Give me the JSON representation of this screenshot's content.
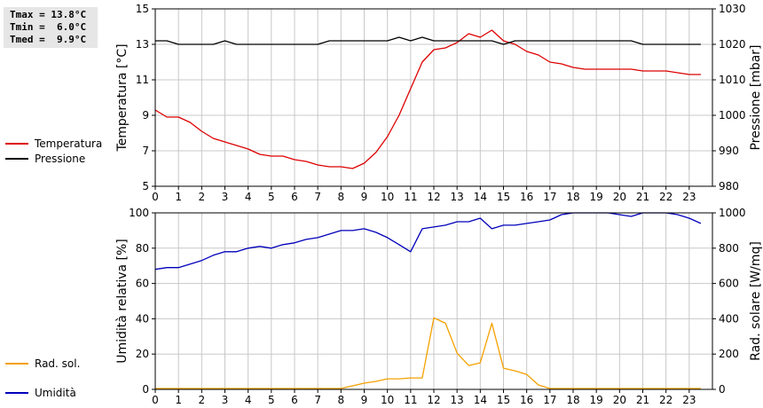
{
  "stats": {
    "tmax": "Tmax = 13.8°C",
    "tmin": "Tmin =  6.0°C",
    "tmed": "Tmed =  9.9°C"
  },
  "colors": {
    "temperature": "#dd0000",
    "pressure": "#000000",
    "humidity": "#0000bb",
    "radiation": "#f5a000",
    "grid": "#c8c8c8"
  },
  "chart_data": [
    {
      "type": "line",
      "x_ticks": [
        "0",
        "1",
        "2",
        "3",
        "4",
        "5",
        "6",
        "7",
        "8",
        "9",
        "10",
        "11",
        "12",
        "13",
        "14",
        "15",
        "16",
        "17",
        "18",
        "19",
        "20",
        "21",
        "22",
        "23"
      ],
      "xlim": [
        0,
        24
      ],
      "ylabel_left": "Temperatura [°C]",
      "ylabel_right": "Pressione [mbar]",
      "yticks_left": [
        "5",
        "7",
        "9",
        "11",
        "13",
        "15"
      ],
      "yticks_right": [
        "980",
        "990",
        "1000",
        "1010",
        "1020",
        "1030"
      ],
      "ylim_left": [
        5,
        15
      ],
      "ylim_right": [
        980,
        1030
      ],
      "grid": true,
      "legend": [
        "Temperatura",
        "Pressione"
      ],
      "series": [
        {
          "name": "Temperatura",
          "axis": "left",
          "color": "#dd0000",
          "x": [
            0,
            0.25,
            0.5,
            1,
            1.5,
            2,
            2.5,
            3,
            3.5,
            4,
            4.5,
            5,
            5.5,
            6,
            6.5,
            7,
            7.5,
            8,
            8.5,
            9,
            9.5,
            10,
            10.5,
            11,
            11.5,
            12,
            12.5,
            13,
            13.5,
            14,
            14.5,
            15,
            15.5,
            16,
            16.5,
            17,
            17.5,
            18,
            18.5,
            19,
            19.5,
            20,
            20.5,
            21,
            21.5,
            22,
            22.5,
            23,
            23.5
          ],
          "y": [
            9.3,
            9.1,
            8.9,
            8.9,
            8.6,
            8.1,
            7.7,
            7.5,
            7.3,
            7.1,
            6.8,
            6.7,
            6.7,
            6.5,
            6.4,
            6.2,
            6.1,
            6.1,
            6.0,
            6.3,
            6.9,
            7.8,
            9.0,
            10.5,
            12.0,
            12.7,
            12.8,
            13.1,
            13.6,
            13.4,
            13.8,
            13.2,
            13.0,
            12.6,
            12.4,
            12.0,
            11.9,
            11.7,
            11.6,
            11.6,
            11.6,
            11.6,
            11.6,
            11.5,
            11.5,
            11.5,
            11.4,
            11.3,
            11.3
          ]
        },
        {
          "name": "Pressione",
          "axis": "right",
          "color": "#000000",
          "x": [
            0,
            0.5,
            1,
            1.5,
            2,
            2.5,
            3,
            3.5,
            4,
            4.5,
            5,
            5.5,
            6,
            6.5,
            7,
            7.5,
            8,
            8.5,
            9,
            9.5,
            10,
            10.5,
            11,
            11.5,
            12,
            12.5,
            13,
            13.5,
            14,
            14.5,
            15,
            15.5,
            16,
            16.5,
            17,
            17.5,
            18,
            18.5,
            19,
            19.5,
            20,
            20.5,
            21,
            21.5,
            22,
            22.5,
            23,
            23.5
          ],
          "y": [
            1021,
            1021,
            1020,
            1020,
            1020,
            1020,
            1021,
            1020,
            1020,
            1020,
            1020,
            1020,
            1020,
            1020,
            1020,
            1021,
            1021,
            1021,
            1021,
            1021,
            1021,
            1022,
            1021,
            1022,
            1021,
            1021,
            1021,
            1021,
            1021,
            1021,
            1020,
            1021,
            1021,
            1021,
            1021,
            1021,
            1021,
            1021,
            1021,
            1021,
            1021,
            1021,
            1020,
            1020,
            1020,
            1020,
            1020,
            1020
          ]
        }
      ]
    },
    {
      "type": "line",
      "x_ticks": [
        "0",
        "1",
        "2",
        "3",
        "4",
        "5",
        "6",
        "7",
        "8",
        "9",
        "10",
        "11",
        "12",
        "13",
        "14",
        "15",
        "16",
        "17",
        "18",
        "19",
        "20",
        "21",
        "22",
        "23"
      ],
      "xlim": [
        0,
        24
      ],
      "ylabel_left": "Umidità relativa [%]",
      "ylabel_right": "Rad. solare [W/mq]",
      "yticks_left": [
        "0",
        "20",
        "40",
        "60",
        "80",
        "100"
      ],
      "yticks_right": [
        "0",
        "200",
        "400",
        "600",
        "800",
        "1000"
      ],
      "ylim_left": [
        0,
        100
      ],
      "ylim_right": [
        0,
        1000
      ],
      "grid": true,
      "legend": [
        "Umidità",
        "Rad. sol."
      ],
      "series": [
        {
          "name": "Umidità",
          "axis": "left",
          "color": "#0000bb",
          "x": [
            0,
            0.5,
            1,
            1.5,
            2,
            2.5,
            3,
            3.5,
            4,
            4.5,
            5,
            5.5,
            6,
            6.5,
            7,
            7.5,
            8,
            8.5,
            9,
            9.5,
            10,
            10.5,
            11,
            11.5,
            12,
            12.5,
            13,
            13.5,
            14,
            14.5,
            15,
            15.5,
            16,
            16.5,
            17,
            17.5,
            18,
            18.5,
            19,
            19.5,
            20,
            20.5,
            21,
            21.5,
            22,
            22.5,
            23,
            23.5
          ],
          "y": [
            68,
            69,
            69,
            71,
            73,
            76,
            78,
            78,
            80,
            81,
            80,
            82,
            83,
            85,
            86,
            88,
            90,
            90,
            91,
            89,
            86,
            82,
            78,
            91,
            92,
            93,
            95,
            95,
            97,
            91,
            93,
            93,
            94,
            95,
            96,
            99,
            100,
            100,
            100,
            100,
            99,
            98,
            100,
            100,
            100,
            99,
            97,
            94
          ]
        },
        {
          "name": "Rad. sol.",
          "axis": "right",
          "color": "#f5a000",
          "x": [
            0,
            0.5,
            1,
            1.5,
            2,
            2.5,
            3,
            3.5,
            4,
            4.5,
            5,
            5.5,
            6,
            6.5,
            7,
            7.5,
            8,
            8.5,
            9,
            9.5,
            10,
            10.5,
            11,
            11.5,
            12,
            12.5,
            13,
            13.5,
            14,
            14.5,
            15,
            15.5,
            16,
            16.5,
            17,
            17.5,
            18,
            18.5,
            19,
            19.5,
            20,
            20.5,
            21,
            21.5,
            22,
            22.5,
            23,
            23.5
          ],
          "y": [
            5,
            5,
            5,
            5,
            5,
            5,
            5,
            5,
            5,
            5,
            5,
            5,
            5,
            5,
            5,
            5,
            5,
            20,
            35,
            45,
            60,
            60,
            65,
            65,
            405,
            375,
            205,
            135,
            150,
            375,
            120,
            105,
            85,
            25,
            5,
            5,
            5,
            5,
            5,
            5,
            5,
            5,
            5,
            5,
            5,
            5,
            5,
            5
          ]
        }
      ]
    }
  ]
}
